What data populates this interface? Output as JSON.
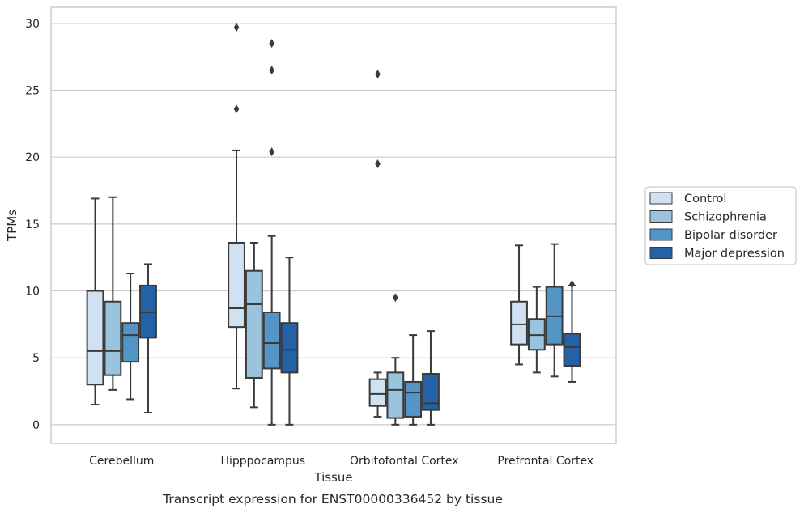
{
  "chart_data": {
    "type": "box",
    "caption": "Transcript expression for ENST00000336452 by tissue",
    "xlabel": "Tissue",
    "ylabel": "TPMs",
    "ylim": [
      -1.4,
      31.2
    ],
    "yticks": [
      0,
      5,
      10,
      15,
      20,
      25,
      30
    ],
    "grid": "horizontal",
    "legend_position": "right",
    "categories": [
      "Cerebellum",
      "Hipppocampus",
      "Orbitofontal Cortex",
      "Prefrontal Cortex"
    ],
    "series": [
      {
        "name": "Control",
        "color": "#d0e1f2",
        "boxes": [
          {
            "whisker_low": 1.5,
            "q1": 3.0,
            "median": 5.5,
            "q3": 10.0,
            "whisker_high": 16.9,
            "outliers": []
          },
          {
            "whisker_low": 2.7,
            "q1": 7.3,
            "median": 8.7,
            "q3": 13.6,
            "whisker_high": 20.5,
            "outliers": [
              23.6,
              29.7
            ]
          },
          {
            "whisker_low": 0.6,
            "q1": 1.4,
            "median": 2.3,
            "q3": 3.4,
            "whisker_high": 3.9,
            "outliers": [
              19.5,
              26.2
            ]
          },
          {
            "whisker_low": 4.5,
            "q1": 6.0,
            "median": 7.5,
            "q3": 9.2,
            "whisker_high": 13.4,
            "outliers": []
          }
        ]
      },
      {
        "name": "Schizophrenia",
        "color": "#9ac3de",
        "boxes": [
          {
            "whisker_low": 2.6,
            "q1": 3.7,
            "median": 5.5,
            "q3": 9.2,
            "whisker_high": 17.0,
            "outliers": []
          },
          {
            "whisker_low": 1.3,
            "q1": 3.5,
            "median": 9.0,
            "q3": 11.5,
            "whisker_high": 13.6,
            "outliers": []
          },
          {
            "whisker_low": 0.0,
            "q1": 0.5,
            "median": 2.6,
            "q3": 3.9,
            "whisker_high": 5.0,
            "outliers": [
              9.5
            ]
          },
          {
            "whisker_low": 3.9,
            "q1": 5.6,
            "median": 6.7,
            "q3": 7.9,
            "whisker_high": 10.3,
            "outliers": []
          }
        ]
      },
      {
        "name": "Bipolar disorder",
        "color": "#5395c6",
        "boxes": [
          {
            "whisker_low": 1.9,
            "q1": 4.7,
            "median": 6.7,
            "q3": 7.6,
            "whisker_high": 11.3,
            "outliers": []
          },
          {
            "whisker_low": 0.0,
            "q1": 4.2,
            "median": 6.1,
            "q3": 8.4,
            "whisker_high": 14.1,
            "outliers": [
              20.4,
              26.5,
              28.5
            ]
          },
          {
            "whisker_low": 0.0,
            "q1": 0.6,
            "median": 2.4,
            "q3": 3.2,
            "whisker_high": 6.7,
            "outliers": []
          },
          {
            "whisker_low": 3.6,
            "q1": 6.0,
            "median": 8.1,
            "q3": 10.3,
            "whisker_high": 13.5,
            "outliers": []
          }
        ]
      },
      {
        "name": "Major depression",
        "color": "#2462a8",
        "boxes": [
          {
            "whisker_low": 0.9,
            "q1": 6.5,
            "median": 8.4,
            "q3": 10.4,
            "whisker_high": 12.0,
            "outliers": []
          },
          {
            "whisker_low": 0.0,
            "q1": 3.9,
            "median": 5.6,
            "q3": 7.6,
            "whisker_high": 12.5,
            "outliers": []
          },
          {
            "whisker_low": 0.0,
            "q1": 1.1,
            "median": 1.6,
            "q3": 3.8,
            "whisker_high": 7.0,
            "outliers": []
          },
          {
            "whisker_low": 3.2,
            "q1": 4.4,
            "median": 5.8,
            "q3": 6.8,
            "whisker_high": 10.4,
            "outliers": [
              10.5
            ]
          }
        ]
      }
    ]
  }
}
